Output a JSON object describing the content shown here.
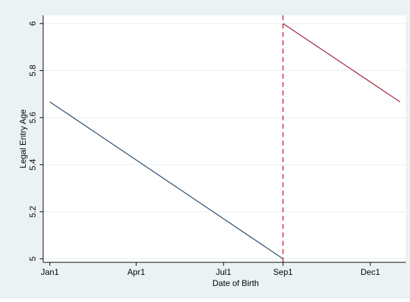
{
  "chart_data": {
    "type": "line",
    "title": "",
    "xlabel": "Date of Birth",
    "ylabel": "Legal Entry Age",
    "x_ticks": [
      {
        "label": "Jan1",
        "x": 0
      },
      {
        "label": "Apr1",
        "x": 90
      },
      {
        "label": "Jul1",
        "x": 181
      },
      {
        "label": "Sep1",
        "x": 243
      },
      {
        "label": "Dec1",
        "x": 334
      }
    ],
    "y_ticks": [
      {
        "label": "5",
        "y": 5.0
      },
      {
        "label": "5.2",
        "y": 5.2
      },
      {
        "label": "5.4",
        "y": 5.4
      },
      {
        "label": "5.6",
        "y": 5.6
      },
      {
        "label": "5.8",
        "y": 5.8
      },
      {
        "label": "6",
        "y": 6.0
      }
    ],
    "xlim": [
      -7,
      371
    ],
    "ylim": [
      4.985,
      6.035
    ],
    "grid": "horizontal",
    "legend": "none",
    "series": [
      {
        "color": "#3d5a78",
        "points": [
          {
            "x": 0,
            "y": 5.667
          },
          {
            "x": 243,
            "y": 5.0
          }
        ]
      },
      {
        "color": "#a8344a",
        "points": [
          {
            "x": 243,
            "y": 6.0
          },
          {
            "x": 365,
            "y": 5.667
          }
        ]
      }
    ],
    "reference_line": {
      "x": 243,
      "style": "dashed",
      "color": "#c8202e"
    },
    "background": "#eaf2f3",
    "plot_background": "#ffffff"
  }
}
